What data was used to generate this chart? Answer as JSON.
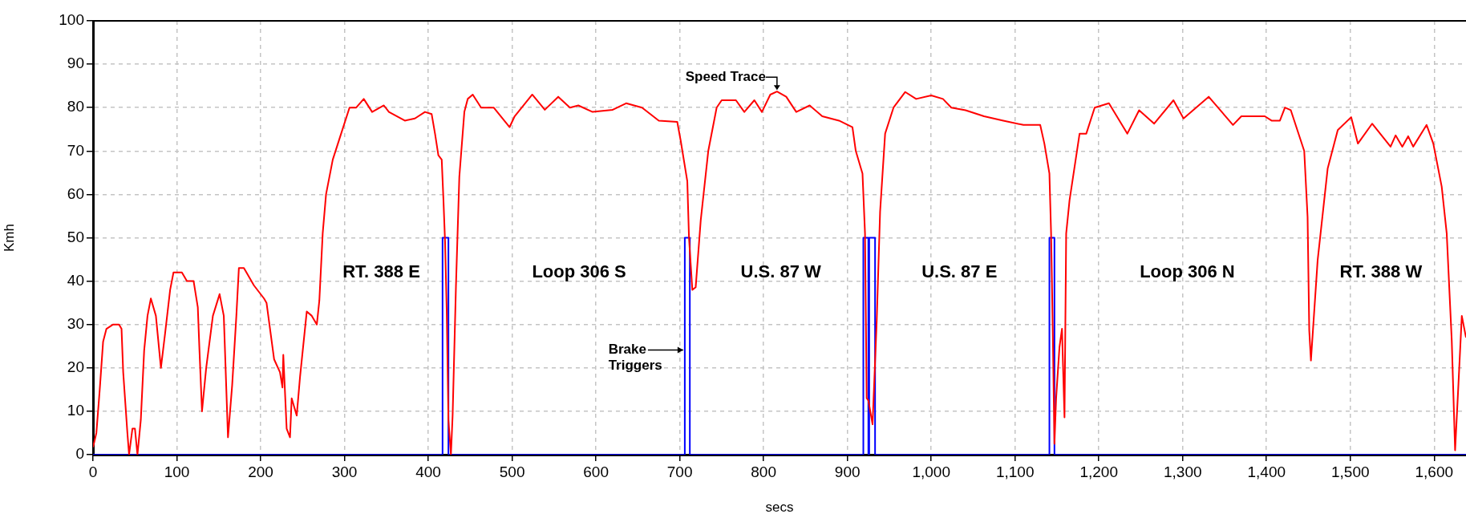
{
  "chart_data": {
    "type": "line",
    "xlabel": "secs",
    "ylabel": "Kmh",
    "xlim": [
      0,
      1638
    ],
    "ylim": [
      0,
      100
    ],
    "xticks": [
      0,
      100,
      200,
      300,
      400,
      500,
      600,
      700,
      800,
      900,
      {
        "value": 1000,
        "label": "1,000"
      },
      {
        "value": 1100,
        "label": "1,100"
      },
      {
        "value": 1200,
        "label": "1,200"
      },
      {
        "value": 1300,
        "label": "1,300"
      },
      {
        "value": 1400,
        "label": "1,400"
      },
      {
        "value": 1500,
        "label": "1,500"
      },
      {
        "value": 1600,
        "label": "1,600"
      }
    ],
    "yticks": [
      0,
      10,
      20,
      30,
      40,
      50,
      60,
      70,
      80,
      90,
      100
    ],
    "grid": true,
    "marker": "none",
    "series": [
      {
        "type": "line",
        "color": "#ff0000",
        "x": [
          0,
          4,
          8,
          12,
          16,
          24,
          31,
          34,
          36,
          41,
          43,
          47,
          50,
          53,
          57,
          61,
          65,
          69,
          75,
          81,
          86,
          92,
          96,
          106,
          112,
          120,
          125,
          127,
          130,
          135,
          143,
          151,
          156,
          161,
          166,
          171,
          174,
          180,
          192,
          204,
          207,
          216,
          223,
          226,
          227,
          231,
          235,
          237,
          243,
          247,
          255,
          261,
          267,
          270,
          274,
          278,
          286,
          296,
          306,
          314,
          323,
          333,
          347,
          353,
          372,
          384,
          396,
          404,
          408,
          412,
          416,
          418,
          420,
          422,
          424,
          427,
          429,
          433,
          437,
          443,
          447,
          453,
          463,
          478,
          497,
          503,
          524,
          539,
          555,
          569,
          579,
          596,
          620,
          636,
          655,
          675,
          697,
          701,
          709,
          711,
          715,
          719,
          725,
          734,
          744,
          750,
          767,
          777,
          789,
          798,
          808,
          816,
          827,
          839,
          855,
          870,
          890,
          906,
          910,
          918,
          921,
          923,
          925,
          930,
          935,
          939,
          945,
          955,
          969,
          982,
          1000,
          1014,
          1024,
          1041,
          1063,
          1086,
          1110,
          1130,
          1135,
          1141,
          1143,
          1145,
          1147,
          1149,
          1153,
          1156,
          1159,
          1161,
          1165,
          1177,
          1185,
          1195,
          1212,
          1234,
          1248,
          1266,
          1289,
          1301,
          1331,
          1360,
          1370,
          1398,
          1406,
          1416,
          1422,
          1429,
          1445,
          1449,
          1451,
          1453,
          1461,
          1473,
          1485,
          1501,
          1509,
          1526,
          1548,
          1554,
          1562,
          1569,
          1575,
          1591,
          1599,
          1609,
          1615,
          1621,
          1625,
          1629,
          1633,
          1638
        ],
        "values": [
          1.7,
          5,
          15,
          26,
          29,
          30,
          30,
          29,
          19,
          5,
          0,
          6,
          6,
          0,
          8,
          24,
          32,
          36,
          32,
          20,
          28,
          38,
          42,
          42,
          40,
          40,
          34,
          24,
          10,
          20,
          32,
          37,
          32,
          4,
          16,
          32,
          43,
          43,
          39,
          36,
          35,
          22,
          19,
          15.5,
          23,
          6,
          4,
          13,
          9,
          18,
          33,
          32,
          30,
          35.5,
          51,
          60,
          68,
          74,
          80,
          80,
          82,
          79,
          80.5,
          79,
          77,
          77.5,
          79,
          78.5,
          74,
          69,
          68,
          59,
          49,
          33,
          8,
          0,
          9,
          39,
          64,
          79,
          82,
          83,
          80,
          80,
          75.5,
          78,
          83,
          79.5,
          82.5,
          80,
          80.5,
          79,
          79.5,
          81,
          80,
          77,
          76.7,
          72.5,
          63,
          50,
          38,
          38.6,
          54,
          70,
          80,
          81.7,
          81.7,
          79,
          81.7,
          79,
          83,
          83.7,
          82.5,
          79,
          80.5,
          78,
          77,
          75.5,
          70,
          64.8,
          51,
          13,
          12.5,
          7,
          31,
          56,
          74,
          80,
          83.6,
          82,
          82.8,
          82,
          80,
          79.4,
          78,
          77,
          76,
          76,
          71.7,
          64.8,
          51,
          28.6,
          2.5,
          13,
          24.8,
          29,
          8.6,
          51,
          58.6,
          74,
          74,
          80,
          81,
          74,
          79.4,
          76.3,
          81.7,
          77.5,
          82.5,
          76,
          78,
          78,
          77,
          77,
          80,
          79.4,
          70,
          54.8,
          28.6,
          21.7,
          44.8,
          66,
          74.8,
          77.8,
          71.7,
          76.3,
          71,
          73.6,
          71,
          73.4,
          71,
          76,
          71.7,
          61.8,
          51,
          26.3,
          1,
          16.3,
          32,
          27
        ]
      },
      {
        "type": "step",
        "color": "#0000ff",
        "x": [
          0,
          417,
          424,
          706,
          712,
          919,
          925,
          926,
          933,
          1141,
          1147,
          1638
        ],
        "values": [
          0,
          50,
          0,
          50,
          0,
          50,
          0,
          50,
          0,
          50,
          0,
          0
        ]
      }
    ],
    "annotations": [
      {
        "text": "Speed Trace",
        "x": 816,
        "y": 83.7
      },
      {
        "text": "Brake\nTriggers",
        "x": 706,
        "y": 23
      },
      "RT. 388 E",
      "Loop 306 S",
      "U.S. 87 W",
      "U.S. 87 E",
      "Loop 306 N",
      "RT. 388 W"
    ]
  }
}
